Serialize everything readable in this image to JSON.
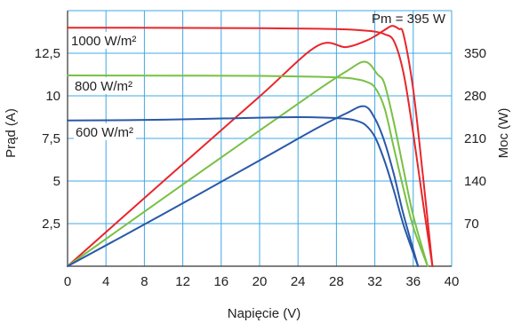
{
  "chart_data": {
    "type": "line",
    "xlabel": "Napięcie (V)",
    "ylabel": "Prąd (A)",
    "y2label": "Moc (W)",
    "xlim": [
      0,
      40
    ],
    "ylim": [
      0,
      15
    ],
    "y2lim": [
      0,
      420
    ],
    "xticks": [
      "0",
      "4",
      "8",
      "12",
      "16",
      "20",
      "24",
      "28",
      "32",
      "36",
      "40"
    ],
    "yticks": [
      "2,5",
      "5",
      "7,5",
      "10",
      "12,5"
    ],
    "y2ticks": [
      "70",
      "140",
      "210",
      "280",
      "350"
    ],
    "grid": true,
    "annotation": "Pm = 395 W",
    "colors": {
      "1000": "#e8262b",
      "800": "#79c044",
      "600": "#2958a8",
      "grid": "#3fa9e4"
    },
    "series": [
      {
        "name": "1000 W/m²",
        "kind": "current",
        "axis": "left",
        "x": [
          0,
          10,
          20,
          26,
          29,
          31,
          32,
          33,
          34,
          35,
          36,
          37,
          38
        ],
        "y": [
          14.0,
          13.99,
          13.97,
          13.94,
          13.9,
          13.83,
          13.77,
          13.62,
          13.2,
          11.3,
          7.8,
          3.8,
          0
        ]
      },
      {
        "name": "1000 W/m²",
        "kind": "power",
        "axis": "right",
        "x": [
          0,
          10,
          20,
          26,
          29,
          31,
          32,
          33,
          33.8,
          34.5,
          35,
          36,
          37,
          38
        ],
        "y": [
          0,
          140,
          279,
          362,
          360,
          370,
          378,
          388,
          395,
          390,
          380,
          290,
          150,
          0
        ]
      },
      {
        "name": "800 W/m²",
        "kind": "current",
        "axis": "left",
        "x": [
          0,
          10,
          20,
          26,
          29,
          30,
          31,
          32,
          33,
          34,
          35,
          36,
          37.5
        ],
        "y": [
          11.2,
          11.19,
          11.17,
          11.12,
          11.05,
          10.98,
          10.85,
          10.5,
          9.3,
          6.9,
          4.5,
          2.3,
          0
        ]
      },
      {
        "name": "800 W/m²",
        "kind": "power",
        "axis": "right",
        "x": [
          0,
          10,
          20,
          26,
          29,
          31,
          32.3,
          33,
          34,
          35,
          36,
          37.5
        ],
        "y": [
          0,
          112,
          223,
          289,
          320,
          336,
          315,
          300,
          235,
          158,
          83,
          0
        ]
      },
      {
        "name": "600 W/m²",
        "kind": "current",
        "axis": "left",
        "x": [
          0,
          10,
          20,
          24,
          27,
          29,
          30,
          31,
          32,
          33,
          34,
          35,
          36.5
        ],
        "y": [
          8.55,
          8.6,
          8.72,
          8.75,
          8.72,
          8.65,
          8.55,
          8.3,
          7.6,
          6.2,
          4.4,
          2.4,
          0
        ]
      },
      {
        "name": "600 W/m²",
        "kind": "power",
        "axis": "right",
        "x": [
          0,
          10,
          20,
          26,
          29,
          30.9,
          32,
          33,
          34,
          35,
          36.5
        ],
        "y": [
          0,
          86,
          174,
          227,
          251,
          263,
          243,
          205,
          150,
          84,
          0
        ]
      }
    ],
    "labels": [
      {
        "text": "1000 W/m²",
        "series": "1000"
      },
      {
        "text": "800 W/m²",
        "series": "800"
      },
      {
        "text": "600 W/m²",
        "series": "600"
      }
    ]
  }
}
